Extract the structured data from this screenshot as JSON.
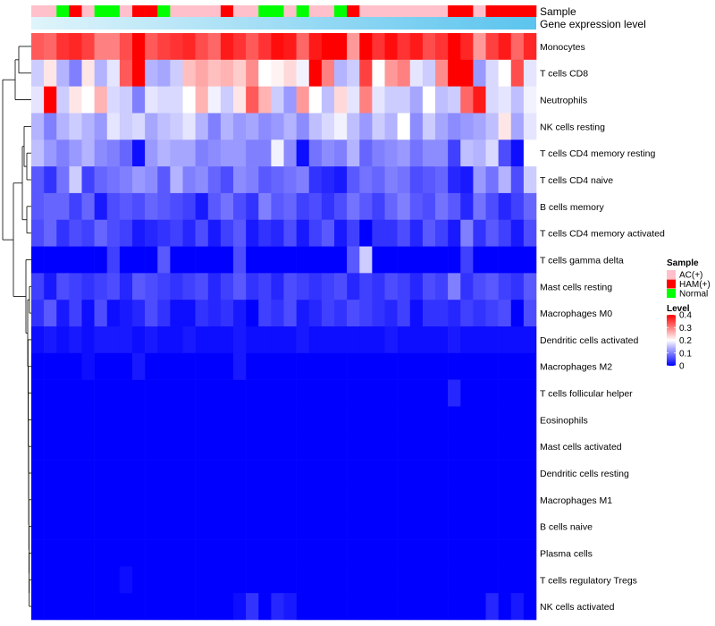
{
  "chart_data": {
    "type": "heatmap",
    "annotation_labels": {
      "sample": "Sample",
      "gene_expression": "Gene expression level"
    },
    "sample_groups": [
      "AC(+)",
      "AC(+)",
      "Normal",
      "HAM(+)",
      "AC(+)",
      "Normal",
      "Normal",
      "AC(+)",
      "HAM(+)",
      "HAM(+)",
      "Normal",
      "AC(+)",
      "AC(+)",
      "AC(+)",
      "AC(+)",
      "HAM(+)",
      "AC(+)",
      "AC(+)",
      "Normal",
      "Normal",
      "AC(+)",
      "Normal",
      "AC(+)",
      "AC(+)",
      "Normal",
      "HAM(+)",
      "AC(+)",
      "AC(+)",
      "AC(+)",
      "AC(+)",
      "AC(+)",
      "AC(+)",
      "AC(+)",
      "HAM(+)",
      "HAM(+)",
      "AC(+)",
      "HAM(+)",
      "HAM(+)",
      "HAM(+)",
      "HAM(+)"
    ],
    "rows": [
      "Monocytes",
      "T cells CD8",
      "Neutrophils",
      "NK cells resting",
      "T cells CD4 memory resting",
      "T cells CD4 naive",
      "B cells memory",
      "T cells CD4 memory activated",
      "T cells gamma delta",
      "Mast cells resting",
      "Macrophages M0",
      "Dendritic cells activated",
      "Macrophages M2",
      "T cells follicular helper",
      "Eosinophils",
      "Mast cells activated",
      "Dendritic cells resting",
      "Macrophages M1",
      "B cells naive",
      "Plasma cells",
      "T cells regulatory  Tregs",
      "NK cells activated"
    ],
    "values": [
      [
        0.33,
        0.32,
        0.36,
        0.37,
        0.35,
        0.3,
        0.3,
        0.34,
        0.42,
        0.33,
        0.35,
        0.36,
        0.37,
        0.34,
        0.32,
        0.38,
        0.36,
        0.33,
        0.36,
        0.39,
        0.38,
        0.32,
        0.38,
        0.41,
        0.42,
        0.28,
        0.4,
        0.36,
        0.39,
        0.36,
        0.38,
        0.34,
        0.36,
        0.4,
        0.37,
        0.28,
        0.35,
        0.38,
        0.32,
        0.37
      ],
      [
        0.16,
        0.22,
        0.14,
        0.1,
        0.22,
        0.14,
        0.18,
        0.33,
        0.4,
        0.14,
        0.13,
        0.16,
        0.25,
        0.27,
        0.25,
        0.26,
        0.24,
        0.29,
        0.2,
        0.21,
        0.23,
        0.19,
        0.42,
        0.3,
        0.14,
        0.16,
        0.35,
        0.2,
        0.28,
        0.3,
        0.18,
        0.16,
        0.29,
        0.4,
        0.41,
        0.12,
        0.17,
        0.2,
        0.34,
        0.18
      ],
      [
        0.18,
        0.42,
        0.16,
        0.22,
        0.2,
        0.26,
        0.17,
        0.16,
        0.1,
        0.18,
        0.17,
        0.17,
        0.2,
        0.26,
        0.19,
        0.16,
        0.22,
        0.33,
        0.26,
        0.16,
        0.12,
        0.28,
        0.2,
        0.15,
        0.23,
        0.18,
        0.3,
        0.18,
        0.16,
        0.16,
        0.13,
        0.2,
        0.15,
        0.16,
        0.32,
        0.38,
        0.17,
        0.18,
        0.15,
        0.19
      ],
      [
        0.14,
        0.1,
        0.14,
        0.16,
        0.14,
        0.12,
        0.18,
        0.16,
        0.17,
        0.13,
        0.15,
        0.16,
        0.18,
        0.14,
        0.1,
        0.14,
        0.12,
        0.13,
        0.11,
        0.12,
        0.14,
        0.11,
        0.15,
        0.17,
        0.19,
        0.15,
        0.12,
        0.16,
        0.14,
        0.2,
        0.11,
        0.16,
        0.13,
        0.11,
        0.12,
        0.13,
        0.15,
        0.22,
        0.13,
        0.18
      ],
      [
        0.15,
        0.12,
        0.1,
        0.12,
        0.14,
        0.11,
        0.1,
        0.08,
        0.01,
        0.12,
        0.14,
        0.13,
        0.13,
        0.1,
        0.11,
        0.12,
        0.12,
        0.1,
        0.1,
        0.19,
        0.11,
        0.01,
        0.09,
        0.11,
        0.1,
        0.14,
        0.08,
        0.1,
        0.11,
        0.12,
        0.09,
        0.11,
        0.11,
        0.05,
        0.15,
        0.14,
        0.17,
        0.06,
        0.01,
        0.2
      ],
      [
        0.07,
        0.04,
        0.09,
        0.16,
        0.05,
        0.08,
        0.09,
        0.1,
        0.12,
        0.11,
        0.07,
        0.14,
        0.1,
        0.11,
        0.08,
        0.06,
        0.11,
        0.1,
        0.07,
        0.08,
        0.09,
        0.1,
        0.04,
        0.03,
        0.02,
        0.07,
        0.09,
        0.08,
        0.1,
        0.09,
        0.06,
        0.07,
        0.08,
        0.03,
        0.02,
        0.12,
        0.09,
        0.14,
        0.06,
        0.16
      ],
      [
        0.07,
        0.08,
        0.08,
        0.05,
        0.08,
        0.02,
        0.06,
        0.07,
        0.06,
        0.08,
        0.07,
        0.06,
        0.05,
        0.02,
        0.07,
        0.09,
        0.06,
        0.04,
        0.1,
        0.07,
        0.08,
        0.05,
        0.06,
        0.04,
        0.06,
        0.09,
        0.07,
        0.05,
        0.08,
        0.1,
        0.07,
        0.06,
        0.09,
        0.07,
        0.03,
        0.09,
        0.06,
        0.03,
        0.05,
        0.08
      ],
      [
        0.06,
        0.08,
        0.04,
        0.06,
        0.05,
        0.08,
        0.06,
        0.05,
        0.02,
        0.03,
        0.04,
        0.05,
        0.03,
        0.06,
        0.02,
        0.05,
        0.07,
        0.02,
        0.04,
        0.03,
        0.06,
        0.02,
        0.05,
        0.07,
        0.02,
        0.05,
        0.0,
        0.04,
        0.04,
        0.06,
        0.03,
        0.07,
        0.05,
        0.02,
        0.1,
        0.04,
        0.07,
        0.05,
        0.02,
        0.06
      ],
      [
        0.0,
        0.0,
        0.0,
        0.0,
        0.0,
        0.0,
        0.05,
        0.0,
        0.0,
        0.0,
        0.07,
        0.0,
        0.0,
        0.0,
        0.0,
        0.0,
        0.06,
        0.0,
        0.0,
        0.0,
        0.0,
        0.0,
        0.0,
        0.0,
        0.0,
        0.07,
        0.16,
        0.0,
        0.0,
        0.0,
        0.0,
        0.0,
        0.0,
        0.0,
        0.05,
        0.0,
        0.0,
        0.0,
        0.0,
        0.0
      ],
      [
        0.05,
        0.02,
        0.06,
        0.05,
        0.04,
        0.05,
        0.06,
        0.03,
        0.07,
        0.06,
        0.05,
        0.04,
        0.05,
        0.06,
        0.03,
        0.05,
        0.07,
        0.04,
        0.05,
        0.03,
        0.06,
        0.05,
        0.04,
        0.05,
        0.06,
        0.03,
        0.05,
        0.04,
        0.06,
        0.05,
        0.03,
        0.06,
        0.05,
        0.1,
        0.04,
        0.06,
        0.07,
        0.05,
        0.04,
        0.07
      ],
      [
        0.04,
        0.07,
        0.02,
        0.05,
        0.01,
        0.06,
        0.01,
        0.02,
        0.03,
        0.06,
        0.04,
        0.01,
        0.01,
        0.04,
        0.03,
        0.04,
        0.02,
        0.0,
        0.05,
        0.04,
        0.06,
        0.02,
        0.03,
        0.05,
        0.04,
        0.06,
        0.05,
        0.04,
        0.03,
        0.05,
        0.01,
        0.04,
        0.04,
        0.03,
        0.05,
        0.04,
        0.05,
        0.06,
        0.0,
        0.06
      ],
      [
        0.01,
        0.02,
        0.01,
        0.02,
        0.01,
        0.02,
        0.02,
        0.02,
        0.01,
        0.02,
        0.01,
        0.01,
        0.02,
        0.01,
        0.01,
        0.01,
        0.02,
        0.01,
        0.01,
        0.01,
        0.01,
        0.02,
        0.01,
        0.01,
        0.01,
        0.01,
        0.01,
        0.01,
        0.02,
        0.01,
        0.01,
        0.01,
        0.01,
        0.02,
        0.01,
        0.01,
        0.01,
        0.01,
        0.01,
        0.01
      ],
      [
        0.0,
        0.0,
        0.0,
        0.0,
        0.01,
        0.0,
        0.0,
        0.0,
        0.02,
        0.0,
        0.0,
        0.0,
        0.0,
        0.0,
        0.0,
        0.0,
        0.02,
        0.0,
        0.0,
        0.0,
        0.0,
        0.0,
        0.0,
        0.0,
        0.0,
        0.0,
        0.0,
        0.0,
        0.0,
        0.0,
        0.0,
        0.0,
        0.0,
        0.0,
        0.0,
        0.0,
        0.0,
        0.0,
        0.0,
        0.0
      ],
      [
        0.0,
        0.0,
        0.0,
        0.0,
        0.0,
        0.0,
        0.0,
        0.0,
        0.0,
        0.0,
        0.0,
        0.0,
        0.0,
        0.0,
        0.0,
        0.0,
        0.0,
        0.0,
        0.0,
        0.0,
        0.0,
        0.0,
        0.0,
        0.0,
        0.0,
        0.0,
        0.0,
        0.0,
        0.0,
        0.0,
        0.0,
        0.0,
        0.0,
        0.03,
        0.0,
        0.0,
        0.0,
        0.0,
        0.0,
        0.0
      ],
      [
        0,
        0,
        0,
        0,
        0,
        0,
        0,
        0,
        0,
        0,
        0,
        0,
        0,
        0,
        0,
        0,
        0,
        0,
        0,
        0,
        0,
        0,
        0,
        0,
        0,
        0,
        0,
        0,
        0,
        0,
        0,
        0,
        0,
        0,
        0,
        0,
        0,
        0,
        0,
        0
      ],
      [
        0,
        0,
        0,
        0,
        0,
        0,
        0,
        0,
        0,
        0,
        0,
        0,
        0,
        0,
        0,
        0,
        0,
        0,
        0,
        0,
        0,
        0,
        0,
        0,
        0,
        0,
        0,
        0,
        0,
        0,
        0,
        0,
        0,
        0,
        0,
        0,
        0,
        0,
        0,
        0
      ],
      [
        0,
        0,
        0,
        0,
        0,
        0,
        0,
        0,
        0,
        0,
        0,
        0,
        0,
        0,
        0,
        0,
        0,
        0,
        0,
        0,
        0,
        0,
        0,
        0,
        0,
        0,
        0,
        0,
        0,
        0,
        0,
        0,
        0,
        0,
        0,
        0,
        0,
        0,
        0,
        0
      ],
      [
        0,
        0,
        0,
        0,
        0,
        0,
        0,
        0,
        0,
        0,
        0,
        0,
        0,
        0,
        0,
        0,
        0,
        0,
        0,
        0,
        0,
        0,
        0,
        0,
        0,
        0,
        0,
        0,
        0,
        0,
        0,
        0,
        0,
        0,
        0,
        0,
        0,
        0,
        0,
        0
      ],
      [
        0,
        0,
        0,
        0,
        0,
        0,
        0,
        0,
        0,
        0,
        0,
        0,
        0,
        0,
        0,
        0,
        0,
        0,
        0,
        0,
        0,
        0,
        0,
        0,
        0,
        0,
        0,
        0,
        0,
        0,
        0,
        0,
        0,
        0,
        0,
        0,
        0,
        0,
        0,
        0
      ],
      [
        0,
        0,
        0,
        0,
        0,
        0,
        0,
        0,
        0,
        0,
        0,
        0,
        0,
        0,
        0,
        0,
        0,
        0,
        0,
        0,
        0,
        0,
        0,
        0,
        0,
        0,
        0,
        0,
        0,
        0,
        0,
        0,
        0,
        0,
        0,
        0,
        0,
        0,
        0,
        0
      ],
      [
        0.0,
        0.0,
        0.0,
        0.0,
        0.0,
        0.0,
        0.0,
        0.01,
        0.0,
        0.0,
        0.0,
        0.0,
        0.0,
        0.0,
        0.0,
        0.0,
        0.0,
        0.0,
        0.0,
        0.0,
        0.0,
        0.0,
        0.0,
        0.0,
        0.0,
        0.0,
        0.0,
        0.0,
        0.0,
        0.0,
        0.0,
        0.0,
        0.0,
        0.0,
        0.0,
        0.0,
        0.0,
        0.0,
        0.0,
        0.0
      ],
      [
        0.0,
        0.0,
        0.0,
        0.0,
        0.0,
        0.0,
        0.0,
        0.0,
        0.0,
        0.0,
        0.0,
        0.0,
        0.0,
        0.0,
        0.0,
        0.0,
        0.01,
        0.04,
        0.0,
        0.03,
        0.02,
        0.0,
        0.0,
        0.0,
        0.0,
        0.0,
        0.0,
        0.0,
        0.0,
        0.0,
        0.0,
        0.0,
        0.0,
        0.0,
        0.0,
        0.0,
        0.03,
        0.0,
        0.02,
        0.0
      ]
    ],
    "color_scale": {
      "min": 0,
      "mid": 0.2,
      "max": 0.4,
      "low_color": "#0000ff",
      "mid_color": "#ffffff",
      "high_color": "#ff0000"
    },
    "legend": {
      "sample": {
        "title": "Sample",
        "entries": [
          {
            "label": "AC(+)",
            "color": "#ffc0cb"
          },
          {
            "label": "HAM(+)",
            "color": "#ff0000"
          },
          {
            "label": "Normal",
            "color": "#00ff00"
          }
        ]
      },
      "level": {
        "title": "Level",
        "ticks": [
          0.4,
          0.3,
          0.2,
          0.1,
          0
        ],
        "tick_labels": [
          "0.4",
          "0.3",
          "0.2",
          "0.1",
          "0"
        ]
      }
    },
    "gene_expression_colors": [
      "#e0f4fb",
      "#5bc4ee"
    ]
  }
}
